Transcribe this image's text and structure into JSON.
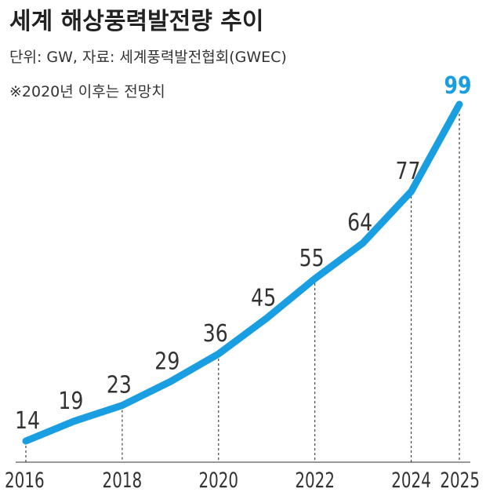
{
  "title": "세계 해상풍력발전량 추이",
  "source": "단위: GW, 자료: 세계풍력발전협회(GWEC)",
  "note": "※2020년 이후는 전망치",
  "colors": {
    "line": "#1a9ee2",
    "highlight_label": "#1a9ee2",
    "label": "#333333",
    "guide": "#444444",
    "axis": "#333333"
  },
  "chart_data": {
    "type": "line",
    "title": "세계 해상풍력발전량 추이",
    "subtitle": "단위: GW, 자료: 세계풍력발전협회(GWEC)",
    "annotation": "※2020년 이후는 전망치",
    "x": [
      2016,
      2017,
      2018,
      2019,
      2020,
      2021,
      2022,
      2023,
      2024,
      2025
    ],
    "series": [
      {
        "values": [
          14,
          19,
          23,
          29,
          36,
          45,
          55,
          64,
          77,
          99
        ]
      }
    ],
    "x_tick_labels": [
      "2016",
      "2018",
      "2020",
      "2022",
      "2024",
      "2025"
    ],
    "guide_lines_at": [
      2016,
      2018,
      2020,
      2022,
      2024,
      2025
    ],
    "highlighted_point": 2025,
    "ylim": [
      0,
      100
    ],
    "grid": false,
    "legend": "none"
  }
}
